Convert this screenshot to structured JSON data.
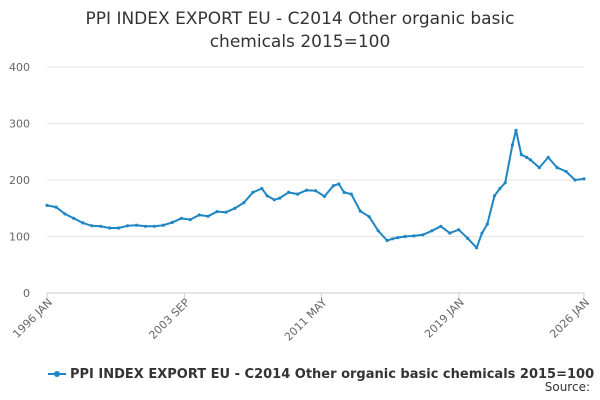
{
  "header": {
    "title_line1": "PPI INDEX EXPORT EU - C2014 Other organic basic",
    "title_line2": "chemicals 2015=100"
  },
  "footer": {
    "source_label": "Source:"
  },
  "colors": {
    "series": "#1f86c4",
    "grid": "#e6e6e6",
    "axis": "#cccccc",
    "text": "#333333",
    "tick_text": "#666666"
  },
  "chart_data": {
    "type": "line",
    "title": "PPI INDEX EXPORT EU - C2014 Other organic basic chemicals 2015=100",
    "xlabel": "",
    "ylabel": "",
    "ylim": [
      0,
      400
    ],
    "xlim": [
      1996.0,
      2026.0
    ],
    "y_ticks": [
      0,
      100,
      200,
      300,
      400
    ],
    "x_ticks": [
      {
        "label": "1996 JAN",
        "value": 1996.0
      },
      {
        "label": "2003 SEP",
        "value": 2003.67
      },
      {
        "label": "2011 MAY",
        "value": 2011.33
      },
      {
        "label": "2019 JAN",
        "value": 2019.0
      },
      {
        "label": "2026 JAN",
        "value": 2026.0
      }
    ],
    "grid": true,
    "legend_position": "bottom",
    "series": [
      {
        "name": "PPI INDEX EXPORT EU - C2014 Other organic basic chemicals 2015=100",
        "x": [
          1996.0,
          1996.5,
          1997.0,
          1997.5,
          1998.0,
          1998.5,
          1999.0,
          1999.5,
          2000.0,
          2000.5,
          2001.0,
          2001.5,
          2002.0,
          2002.5,
          2003.0,
          2003.5,
          2004.0,
          2004.5,
          2005.0,
          2005.5,
          2006.0,
          2006.5,
          2007.0,
          2007.5,
          2008.0,
          2008.3,
          2008.7,
          2009.0,
          2009.5,
          2010.0,
          2010.5,
          2011.0,
          2011.5,
          2012.0,
          2012.3,
          2012.6,
          2013.0,
          2013.5,
          2014.0,
          2014.5,
          2015.0,
          2015.3,
          2015.6,
          2016.0,
          2016.5,
          2017.0,
          2017.5,
          2018.0,
          2018.5,
          2019.0,
          2019.5,
          2020.0,
          2020.3,
          2020.6,
          2021.0,
          2021.3,
          2021.6,
          2022.0,
          2022.2,
          2022.5,
          2022.8,
          2023.0,
          2023.5,
          2024.0,
          2024.5,
          2025.0,
          2025.5,
          2026.0
        ],
        "values": [
          155,
          152,
          140,
          132,
          124,
          119,
          118,
          115,
          115,
          119,
          120,
          118,
          118,
          120,
          125,
          132,
          130,
          138,
          136,
          144,
          143,
          150,
          160,
          178,
          185,
          172,
          165,
          168,
          178,
          175,
          182,
          181,
          171,
          190,
          193,
          178,
          175,
          145,
          135,
          110,
          93,
          96,
          98,
          100,
          101,
          103,
          110,
          118,
          106,
          112,
          97,
          80,
          106,
          122,
          172,
          185,
          195,
          262,
          288,
          245,
          240,
          236,
          222,
          240,
          222,
          215,
          200,
          202
        ]
      }
    ]
  }
}
